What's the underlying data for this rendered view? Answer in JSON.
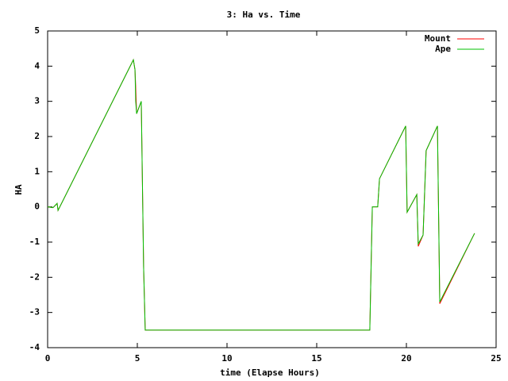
{
  "chart_data": {
    "type": "line",
    "title": "3: Ha vs. Time",
    "x_label": "time (Elapse Hours)",
    "y_label": "HA",
    "x": [
      0,
      0.3,
      0.53,
      0.58,
      4.78,
      4.87,
      4.91,
      4.96,
      5.22,
      5.35,
      5.44,
      17.96,
      18.1,
      18.4,
      18.5,
      19.96,
      20.04,
      20.58,
      20.66,
      20.93,
      21.1,
      21.73,
      21.86,
      23.8
    ],
    "series": [
      {
        "name": "Mount",
        "color": "#ff0000",
        "values": [
          0,
          -0.02,
          0.1,
          -0.1,
          4.18,
          3.9,
          3.4,
          2.65,
          3.0,
          -1.7,
          -3.5,
          -3.5,
          0,
          0,
          0.8,
          2.3,
          -0.15,
          0.35,
          -1.12,
          -0.8,
          1.6,
          2.3,
          -2.75,
          -0.75
        ]
      },
      {
        "name": "Ape",
        "color": "#00c000",
        "values": [
          0,
          -0.02,
          0.1,
          -0.1,
          4.18,
          3.9,
          3.0,
          2.65,
          3.0,
          -1.7,
          -3.5,
          -3.5,
          0,
          0,
          0.8,
          2.3,
          -0.15,
          0.35,
          -1.05,
          -0.8,
          1.6,
          2.3,
          -2.7,
          -0.75
        ]
      }
    ],
    "xlim": [
      0,
      25
    ],
    "xticks": [
      0,
      5,
      10,
      15,
      20,
      25
    ],
    "ylim": [
      -4,
      5
    ],
    "yticks": [
      -4,
      -3,
      -2,
      -1,
      0,
      1,
      2,
      3,
      4,
      5
    ],
    "legend": "top-right"
  }
}
